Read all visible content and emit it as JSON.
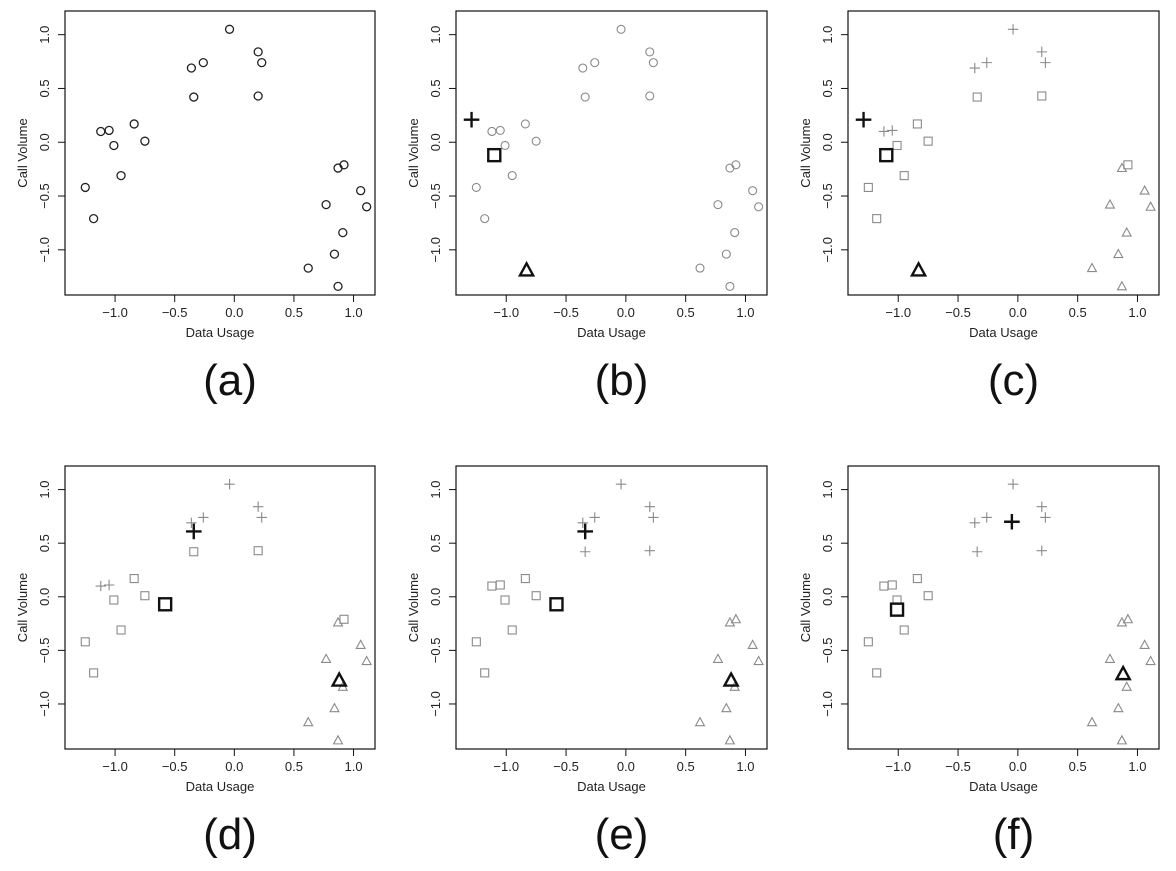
{
  "figure": {
    "panels": [
      "a",
      "b",
      "c",
      "d",
      "e",
      "f"
    ]
  },
  "chart_data": [
    {
      "type": "scatter",
      "label": "(a)",
      "xlabel": "Data Usage",
      "ylabel": "Call Volume",
      "xlim": [
        -1.42,
        1.18
      ],
      "ylim": [
        -1.42,
        1.22
      ],
      "xticks": [
        -1.0,
        -0.5,
        0.0,
        0.5,
        1.0
      ],
      "xtick_labels": [
        "−1.0",
        "−0.5",
        "0.0",
        "0.5",
        "1.0"
      ],
      "yticks": [
        -1.0,
        -0.5,
        0.0,
        0.5,
        1.0
      ],
      "ytick_labels": [
        "−1.0",
        "−0.5",
        "0.0",
        "0.5",
        "1.0"
      ],
      "grid": false,
      "points": [
        {
          "x": -1.25,
          "y": -0.42,
          "marker": "circle"
        },
        {
          "x": -1.18,
          "y": -0.71,
          "marker": "circle"
        },
        {
          "x": -1.12,
          "y": 0.1,
          "marker": "circle"
        },
        {
          "x": -1.05,
          "y": 0.11,
          "marker": "circle"
        },
        {
          "x": -1.01,
          "y": -0.03,
          "marker": "circle"
        },
        {
          "x": -0.95,
          "y": -0.31,
          "marker": "circle"
        },
        {
          "x": -0.84,
          "y": 0.17,
          "marker": "circle"
        },
        {
          "x": -0.75,
          "y": 0.01,
          "marker": "circle"
        },
        {
          "x": -0.36,
          "y": 0.69,
          "marker": "circle"
        },
        {
          "x": -0.34,
          "y": 0.42,
          "marker": "circle"
        },
        {
          "x": -0.26,
          "y": 0.74,
          "marker": "circle"
        },
        {
          "x": -0.04,
          "y": 1.05,
          "marker": "circle"
        },
        {
          "x": 0.2,
          "y": 0.84,
          "marker": "circle"
        },
        {
          "x": 0.23,
          "y": 0.74,
          "marker": "circle"
        },
        {
          "x": 0.2,
          "y": 0.43,
          "marker": "circle"
        },
        {
          "x": 0.62,
          "y": -1.17,
          "marker": "circle"
        },
        {
          "x": 0.77,
          "y": -0.58,
          "marker": "circle"
        },
        {
          "x": 0.84,
          "y": -1.04,
          "marker": "circle"
        },
        {
          "x": 0.87,
          "y": -0.24,
          "marker": "circle"
        },
        {
          "x": 0.92,
          "y": -0.21,
          "marker": "circle"
        },
        {
          "x": 0.91,
          "y": -0.84,
          "marker": "circle"
        },
        {
          "x": 0.87,
          "y": -1.34,
          "marker": "circle"
        },
        {
          "x": 1.06,
          "y": -0.45,
          "marker": "circle"
        },
        {
          "x": 1.11,
          "y": -0.6,
          "marker": "circle"
        }
      ],
      "centroids": []
    },
    {
      "type": "scatter",
      "label": "(b)",
      "xlabel": "Data Usage",
      "ylabel": "Call Volume",
      "xlim": [
        -1.42,
        1.18
      ],
      "ylim": [
        -1.42,
        1.22
      ],
      "xticks": [
        -1.0,
        -0.5,
        0.0,
        0.5,
        1.0
      ],
      "xtick_labels": [
        "−1.0",
        "−0.5",
        "0.0",
        "0.5",
        "1.0"
      ],
      "yticks": [
        -1.0,
        -0.5,
        0.0,
        0.5,
        1.0
      ],
      "ytick_labels": [
        "−1.0",
        "−0.5",
        "0.0",
        "0.5",
        "1.0"
      ],
      "grid": false,
      "points": [
        {
          "x": -1.25,
          "y": -0.42,
          "marker": "circle"
        },
        {
          "x": -1.18,
          "y": -0.71,
          "marker": "circle"
        },
        {
          "x": -1.12,
          "y": 0.1,
          "marker": "circle"
        },
        {
          "x": -1.05,
          "y": 0.11,
          "marker": "circle"
        },
        {
          "x": -1.01,
          "y": -0.03,
          "marker": "circle"
        },
        {
          "x": -0.95,
          "y": -0.31,
          "marker": "circle"
        },
        {
          "x": -0.84,
          "y": 0.17,
          "marker": "circle"
        },
        {
          "x": -0.75,
          "y": 0.01,
          "marker": "circle"
        },
        {
          "x": -0.36,
          "y": 0.69,
          "marker": "circle"
        },
        {
          "x": -0.34,
          "y": 0.42,
          "marker": "circle"
        },
        {
          "x": -0.26,
          "y": 0.74,
          "marker": "circle"
        },
        {
          "x": -0.04,
          "y": 1.05,
          "marker": "circle"
        },
        {
          "x": 0.2,
          "y": 0.84,
          "marker": "circle"
        },
        {
          "x": 0.23,
          "y": 0.74,
          "marker": "circle"
        },
        {
          "x": 0.2,
          "y": 0.43,
          "marker": "circle"
        },
        {
          "x": 0.62,
          "y": -1.17,
          "marker": "circle"
        },
        {
          "x": 0.77,
          "y": -0.58,
          "marker": "circle"
        },
        {
          "x": 0.84,
          "y": -1.04,
          "marker": "circle"
        },
        {
          "x": 0.87,
          "y": -0.24,
          "marker": "circle"
        },
        {
          "x": 0.92,
          "y": -0.21,
          "marker": "circle"
        },
        {
          "x": 0.91,
          "y": -0.84,
          "marker": "circle"
        },
        {
          "x": 0.87,
          "y": -1.34,
          "marker": "circle"
        },
        {
          "x": 1.06,
          "y": -0.45,
          "marker": "circle"
        },
        {
          "x": 1.11,
          "y": -0.6,
          "marker": "circle"
        }
      ],
      "centroids": [
        {
          "x": -1.29,
          "y": 0.21,
          "marker": "plus"
        },
        {
          "x": -1.1,
          "y": -0.12,
          "marker": "square"
        },
        {
          "x": -0.83,
          "y": -1.19,
          "marker": "triangle"
        }
      ]
    },
    {
      "type": "scatter",
      "label": "(c)",
      "xlabel": "Data Usage",
      "ylabel": "Call Volume",
      "xlim": [
        -1.42,
        1.18
      ],
      "ylim": [
        -1.42,
        1.22
      ],
      "xticks": [
        -1.0,
        -0.5,
        0.0,
        0.5,
        1.0
      ],
      "xtick_labels": [
        "−1.0",
        "−0.5",
        "0.0",
        "0.5",
        "1.0"
      ],
      "yticks": [
        -1.0,
        -0.5,
        0.0,
        0.5,
        1.0
      ],
      "ytick_labels": [
        "−1.0",
        "−0.5",
        "0.0",
        "0.5",
        "1.0"
      ],
      "grid": false,
      "points": [
        {
          "x": -1.25,
          "y": -0.42,
          "marker": "square"
        },
        {
          "x": -1.18,
          "y": -0.71,
          "marker": "square"
        },
        {
          "x": -1.12,
          "y": 0.1,
          "marker": "plus"
        },
        {
          "x": -1.05,
          "y": 0.11,
          "marker": "plus"
        },
        {
          "x": -1.01,
          "y": -0.03,
          "marker": "square"
        },
        {
          "x": -0.95,
          "y": -0.31,
          "marker": "square"
        },
        {
          "x": -0.84,
          "y": 0.17,
          "marker": "square"
        },
        {
          "x": -0.75,
          "y": 0.01,
          "marker": "square"
        },
        {
          "x": -0.36,
          "y": 0.69,
          "marker": "plus"
        },
        {
          "x": -0.34,
          "y": 0.42,
          "marker": "square"
        },
        {
          "x": -0.26,
          "y": 0.74,
          "marker": "plus"
        },
        {
          "x": -0.04,
          "y": 1.05,
          "marker": "plus"
        },
        {
          "x": 0.2,
          "y": 0.84,
          "marker": "plus"
        },
        {
          "x": 0.23,
          "y": 0.74,
          "marker": "plus"
        },
        {
          "x": 0.2,
          "y": 0.43,
          "marker": "square"
        },
        {
          "x": 0.62,
          "y": -1.17,
          "marker": "triangle"
        },
        {
          "x": 0.77,
          "y": -0.58,
          "marker": "triangle"
        },
        {
          "x": 0.84,
          "y": -1.04,
          "marker": "triangle"
        },
        {
          "x": 0.87,
          "y": -0.24,
          "marker": "triangle"
        },
        {
          "x": 0.92,
          "y": -0.21,
          "marker": "square"
        },
        {
          "x": 0.91,
          "y": -0.84,
          "marker": "triangle"
        },
        {
          "x": 0.87,
          "y": -1.34,
          "marker": "triangle"
        },
        {
          "x": 1.06,
          "y": -0.45,
          "marker": "triangle"
        },
        {
          "x": 1.11,
          "y": -0.6,
          "marker": "triangle"
        }
      ],
      "centroids": [
        {
          "x": -1.29,
          "y": 0.21,
          "marker": "plus"
        },
        {
          "x": -1.1,
          "y": -0.12,
          "marker": "square"
        },
        {
          "x": -0.83,
          "y": -1.19,
          "marker": "triangle"
        }
      ]
    },
    {
      "type": "scatter",
      "label": "(d)",
      "xlabel": "Data Usage",
      "ylabel": "Call Volume",
      "xlim": [
        -1.42,
        1.18
      ],
      "ylim": [
        -1.42,
        1.22
      ],
      "xticks": [
        -1.0,
        -0.5,
        0.0,
        0.5,
        1.0
      ],
      "xtick_labels": [
        "−1.0",
        "−0.5",
        "0.0",
        "0.5",
        "1.0"
      ],
      "yticks": [
        -1.0,
        -0.5,
        0.0,
        0.5,
        1.0
      ],
      "ytick_labels": [
        "−1.0",
        "−0.5",
        "0.0",
        "0.5",
        "1.0"
      ],
      "grid": false,
      "points": [
        {
          "x": -1.25,
          "y": -0.42,
          "marker": "square"
        },
        {
          "x": -1.18,
          "y": -0.71,
          "marker": "square"
        },
        {
          "x": -1.12,
          "y": 0.1,
          "marker": "plus"
        },
        {
          "x": -1.05,
          "y": 0.11,
          "marker": "plus"
        },
        {
          "x": -1.01,
          "y": -0.03,
          "marker": "square"
        },
        {
          "x": -0.95,
          "y": -0.31,
          "marker": "square"
        },
        {
          "x": -0.84,
          "y": 0.17,
          "marker": "square"
        },
        {
          "x": -0.75,
          "y": 0.01,
          "marker": "square"
        },
        {
          "x": -0.36,
          "y": 0.69,
          "marker": "plus"
        },
        {
          "x": -0.34,
          "y": 0.42,
          "marker": "square"
        },
        {
          "x": -0.26,
          "y": 0.74,
          "marker": "plus"
        },
        {
          "x": -0.04,
          "y": 1.05,
          "marker": "plus"
        },
        {
          "x": 0.2,
          "y": 0.84,
          "marker": "plus"
        },
        {
          "x": 0.23,
          "y": 0.74,
          "marker": "plus"
        },
        {
          "x": 0.2,
          "y": 0.43,
          "marker": "square"
        },
        {
          "x": 0.62,
          "y": -1.17,
          "marker": "triangle"
        },
        {
          "x": 0.77,
          "y": -0.58,
          "marker": "triangle"
        },
        {
          "x": 0.84,
          "y": -1.04,
          "marker": "triangle"
        },
        {
          "x": 0.87,
          "y": -0.24,
          "marker": "triangle"
        },
        {
          "x": 0.92,
          "y": -0.21,
          "marker": "square"
        },
        {
          "x": 0.91,
          "y": -0.84,
          "marker": "triangle"
        },
        {
          "x": 0.87,
          "y": -1.34,
          "marker": "triangle"
        },
        {
          "x": 1.06,
          "y": -0.45,
          "marker": "triangle"
        },
        {
          "x": 1.11,
          "y": -0.6,
          "marker": "triangle"
        }
      ],
      "centroids": [
        {
          "x": -0.34,
          "y": 0.61,
          "marker": "plus"
        },
        {
          "x": -0.58,
          "y": -0.07,
          "marker": "square"
        },
        {
          "x": 0.88,
          "y": -0.78,
          "marker": "triangle"
        }
      ]
    },
    {
      "type": "scatter",
      "label": "(e)",
      "xlabel": "Data Usage",
      "ylabel": "Call Volume",
      "xlim": [
        -1.42,
        1.18
      ],
      "ylim": [
        -1.42,
        1.22
      ],
      "xticks": [
        -1.0,
        -0.5,
        0.0,
        0.5,
        1.0
      ],
      "xtick_labels": [
        "−1.0",
        "−0.5",
        "0.0",
        "0.5",
        "1.0"
      ],
      "yticks": [
        -1.0,
        -0.5,
        0.0,
        0.5,
        1.0
      ],
      "ytick_labels": [
        "−1.0",
        "−0.5",
        "0.0",
        "0.5",
        "1.0"
      ],
      "grid": false,
      "points": [
        {
          "x": -1.25,
          "y": -0.42,
          "marker": "square"
        },
        {
          "x": -1.18,
          "y": -0.71,
          "marker": "square"
        },
        {
          "x": -1.12,
          "y": 0.1,
          "marker": "square"
        },
        {
          "x": -1.05,
          "y": 0.11,
          "marker": "square"
        },
        {
          "x": -1.01,
          "y": -0.03,
          "marker": "square"
        },
        {
          "x": -0.95,
          "y": -0.31,
          "marker": "square"
        },
        {
          "x": -0.84,
          "y": 0.17,
          "marker": "square"
        },
        {
          "x": -0.75,
          "y": 0.01,
          "marker": "square"
        },
        {
          "x": -0.36,
          "y": 0.69,
          "marker": "plus"
        },
        {
          "x": -0.34,
          "y": 0.42,
          "marker": "plus"
        },
        {
          "x": -0.26,
          "y": 0.74,
          "marker": "plus"
        },
        {
          "x": -0.04,
          "y": 1.05,
          "marker": "plus"
        },
        {
          "x": 0.2,
          "y": 0.84,
          "marker": "plus"
        },
        {
          "x": 0.23,
          "y": 0.74,
          "marker": "plus"
        },
        {
          "x": 0.2,
          "y": 0.43,
          "marker": "plus"
        },
        {
          "x": 0.62,
          "y": -1.17,
          "marker": "triangle"
        },
        {
          "x": 0.77,
          "y": -0.58,
          "marker": "triangle"
        },
        {
          "x": 0.84,
          "y": -1.04,
          "marker": "triangle"
        },
        {
          "x": 0.87,
          "y": -0.24,
          "marker": "triangle"
        },
        {
          "x": 0.92,
          "y": -0.21,
          "marker": "triangle"
        },
        {
          "x": 0.91,
          "y": -0.84,
          "marker": "triangle"
        },
        {
          "x": 0.87,
          "y": -1.34,
          "marker": "triangle"
        },
        {
          "x": 1.06,
          "y": -0.45,
          "marker": "triangle"
        },
        {
          "x": 1.11,
          "y": -0.6,
          "marker": "triangle"
        }
      ],
      "centroids": [
        {
          "x": -0.34,
          "y": 0.61,
          "marker": "plus"
        },
        {
          "x": -0.58,
          "y": -0.07,
          "marker": "square"
        },
        {
          "x": 0.88,
          "y": -0.78,
          "marker": "triangle"
        }
      ]
    },
    {
      "type": "scatter",
      "label": "(f)",
      "xlabel": "Data Usage",
      "ylabel": "Call Volume",
      "xlim": [
        -1.42,
        1.18
      ],
      "ylim": [
        -1.42,
        1.22
      ],
      "xticks": [
        -1.0,
        -0.5,
        0.0,
        0.5,
        1.0
      ],
      "xtick_labels": [
        "−1.0",
        "−0.5",
        "0.0",
        "0.5",
        "1.0"
      ],
      "yticks": [
        -1.0,
        -0.5,
        0.0,
        0.5,
        1.0
      ],
      "ytick_labels": [
        "−1.0",
        "−0.5",
        "0.0",
        "0.5",
        "1.0"
      ],
      "grid": false,
      "points": [
        {
          "x": -1.25,
          "y": -0.42,
          "marker": "square"
        },
        {
          "x": -1.18,
          "y": -0.71,
          "marker": "square"
        },
        {
          "x": -1.12,
          "y": 0.1,
          "marker": "square"
        },
        {
          "x": -1.05,
          "y": 0.11,
          "marker": "square"
        },
        {
          "x": -1.01,
          "y": -0.03,
          "marker": "square"
        },
        {
          "x": -0.95,
          "y": -0.31,
          "marker": "square"
        },
        {
          "x": -0.84,
          "y": 0.17,
          "marker": "square"
        },
        {
          "x": -0.75,
          "y": 0.01,
          "marker": "square"
        },
        {
          "x": -0.36,
          "y": 0.69,
          "marker": "plus"
        },
        {
          "x": -0.34,
          "y": 0.42,
          "marker": "plus"
        },
        {
          "x": -0.26,
          "y": 0.74,
          "marker": "plus"
        },
        {
          "x": -0.04,
          "y": 1.05,
          "marker": "plus"
        },
        {
          "x": 0.2,
          "y": 0.84,
          "marker": "plus"
        },
        {
          "x": 0.23,
          "y": 0.74,
          "marker": "plus"
        },
        {
          "x": 0.2,
          "y": 0.43,
          "marker": "plus"
        },
        {
          "x": 0.62,
          "y": -1.17,
          "marker": "triangle"
        },
        {
          "x": 0.77,
          "y": -0.58,
          "marker": "triangle"
        },
        {
          "x": 0.84,
          "y": -1.04,
          "marker": "triangle"
        },
        {
          "x": 0.87,
          "y": -0.24,
          "marker": "triangle"
        },
        {
          "x": 0.92,
          "y": -0.21,
          "marker": "triangle"
        },
        {
          "x": 0.91,
          "y": -0.84,
          "marker": "triangle"
        },
        {
          "x": 0.87,
          "y": -1.34,
          "marker": "triangle"
        },
        {
          "x": 1.06,
          "y": -0.45,
          "marker": "triangle"
        },
        {
          "x": 1.11,
          "y": -0.6,
          "marker": "triangle"
        }
      ],
      "centroids": [
        {
          "x": -0.05,
          "y": 0.7,
          "marker": "plus"
        },
        {
          "x": -1.01,
          "y": -0.12,
          "marker": "square"
        },
        {
          "x": 0.88,
          "y": -0.72,
          "marker": "triangle"
        }
      ]
    }
  ],
  "colors": {
    "axis": "#111111",
    "point_first_panel": "#222222",
    "point_gray": "#8a8a8a",
    "centroid": "#111111"
  }
}
